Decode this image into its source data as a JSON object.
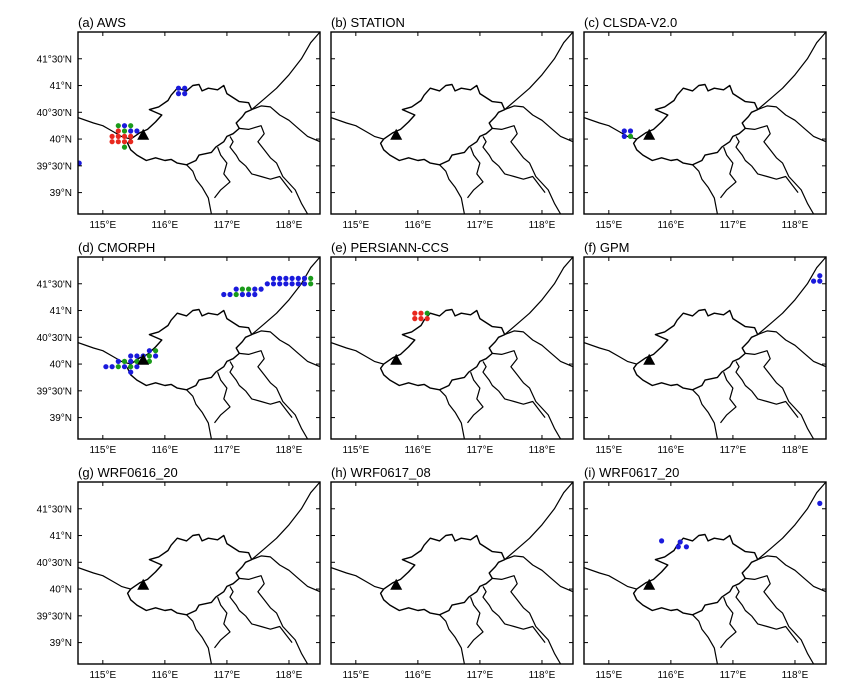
{
  "lon_ticks": [
    "115°E",
    "116°E",
    "117°E",
    "118°E"
  ],
  "lat_ticks": [
    "41°30'N",
    "41°N",
    "40°30'N",
    "40°N",
    "39°30'N",
    "39°N"
  ],
  "lon_values": [
    115,
    116,
    117,
    118
  ],
  "lat_values": [
    41.5,
    41.0,
    40.5,
    40.0,
    39.5,
    39.0
  ],
  "map_extent": {
    "lon": [
      114.6,
      118.5
    ],
    "lat": [
      38.6,
      42.0
    ]
  },
  "colors": {
    "blue": "#1a1adc",
    "green": "#1a9a1a",
    "red": "#e8281e",
    "boundary": "#000000",
    "station_marker": "#000000"
  },
  "station_marker": {
    "lon": 115.65,
    "lat": 40.08,
    "icon": "triangle-icon"
  },
  "panels": [
    {
      "title": "(a) AWS",
      "points": [
        {
          "lon": 116.22,
          "lat": 40.95,
          "c": "blue"
        },
        {
          "lon": 116.32,
          "lat": 40.95,
          "c": "blue"
        },
        {
          "lon": 116.22,
          "lat": 40.85,
          "c": "blue"
        },
        {
          "lon": 116.32,
          "lat": 40.85,
          "c": "blue"
        },
        {
          "lon": 115.25,
          "lat": 40.25,
          "c": "green"
        },
        {
          "lon": 115.35,
          "lat": 40.25,
          "c": "blue"
        },
        {
          "lon": 115.45,
          "lat": 40.25,
          "c": "green"
        },
        {
          "lon": 115.25,
          "lat": 40.15,
          "c": "red"
        },
        {
          "lon": 115.35,
          "lat": 40.15,
          "c": "green"
        },
        {
          "lon": 115.45,
          "lat": 40.15,
          "c": "blue"
        },
        {
          "lon": 115.55,
          "lat": 40.15,
          "c": "blue"
        },
        {
          "lon": 115.15,
          "lat": 40.05,
          "c": "red"
        },
        {
          "lon": 115.25,
          "lat": 40.05,
          "c": "red"
        },
        {
          "lon": 115.35,
          "lat": 40.05,
          "c": "red"
        },
        {
          "lon": 115.45,
          "lat": 40.05,
          "c": "red"
        },
        {
          "lon": 115.15,
          "lat": 39.95,
          "c": "red"
        },
        {
          "lon": 115.25,
          "lat": 39.95,
          "c": "red"
        },
        {
          "lon": 115.35,
          "lat": 39.95,
          "c": "red"
        },
        {
          "lon": 115.45,
          "lat": 39.95,
          "c": "red"
        },
        {
          "lon": 115.35,
          "lat": 39.85,
          "c": "green"
        },
        {
          "lon": 114.62,
          "lat": 39.55,
          "c": "blue"
        }
      ]
    },
    {
      "title": "(b) STATION",
      "points": []
    },
    {
      "title": "(c) CLSDA-V2.0",
      "points": [
        {
          "lon": 115.25,
          "lat": 40.15,
          "c": "blue"
        },
        {
          "lon": 115.35,
          "lat": 40.15,
          "c": "blue"
        },
        {
          "lon": 115.25,
          "lat": 40.05,
          "c": "blue"
        },
        {
          "lon": 115.35,
          "lat": 40.05,
          "c": "green"
        }
      ]
    },
    {
      "title": "(d) CMORPH",
      "points": [
        {
          "lon": 117.75,
          "lat": 41.6,
          "c": "blue"
        },
        {
          "lon": 117.85,
          "lat": 41.6,
          "c": "blue"
        },
        {
          "lon": 117.95,
          "lat": 41.6,
          "c": "blue"
        },
        {
          "lon": 118.05,
          "lat": 41.6,
          "c": "blue"
        },
        {
          "lon": 118.15,
          "lat": 41.6,
          "c": "blue"
        },
        {
          "lon": 118.25,
          "lat": 41.6,
          "c": "blue"
        },
        {
          "lon": 118.35,
          "lat": 41.6,
          "c": "green"
        },
        {
          "lon": 117.65,
          "lat": 41.5,
          "c": "blue"
        },
        {
          "lon": 117.75,
          "lat": 41.5,
          "c": "blue"
        },
        {
          "lon": 117.85,
          "lat": 41.5,
          "c": "blue"
        },
        {
          "lon": 117.95,
          "lat": 41.5,
          "c": "blue"
        },
        {
          "lon": 118.05,
          "lat": 41.5,
          "c": "blue"
        },
        {
          "lon": 118.15,
          "lat": 41.5,
          "c": "blue"
        },
        {
          "lon": 118.25,
          "lat": 41.5,
          "c": "blue"
        },
        {
          "lon": 118.35,
          "lat": 41.5,
          "c": "green"
        },
        {
          "lon": 117.15,
          "lat": 41.4,
          "c": "blue"
        },
        {
          "lon": 117.25,
          "lat": 41.4,
          "c": "green"
        },
        {
          "lon": 117.35,
          "lat": 41.4,
          "c": "green"
        },
        {
          "lon": 117.45,
          "lat": 41.4,
          "c": "blue"
        },
        {
          "lon": 117.55,
          "lat": 41.4,
          "c": "blue"
        },
        {
          "lon": 116.95,
          "lat": 41.3,
          "c": "blue"
        },
        {
          "lon": 117.05,
          "lat": 41.3,
          "c": "blue"
        },
        {
          "lon": 117.15,
          "lat": 41.3,
          "c": "green"
        },
        {
          "lon": 117.25,
          "lat": 41.3,
          "c": "blue"
        },
        {
          "lon": 117.35,
          "lat": 41.3,
          "c": "blue"
        },
        {
          "lon": 117.45,
          "lat": 41.3,
          "c": "blue"
        },
        {
          "lon": 115.75,
          "lat": 40.25,
          "c": "blue"
        },
        {
          "lon": 115.85,
          "lat": 40.25,
          "c": "green"
        },
        {
          "lon": 115.45,
          "lat": 40.15,
          "c": "blue"
        },
        {
          "lon": 115.55,
          "lat": 40.15,
          "c": "blue"
        },
        {
          "lon": 115.65,
          "lat": 40.15,
          "c": "blue"
        },
        {
          "lon": 115.75,
          "lat": 40.15,
          "c": "green"
        },
        {
          "lon": 115.85,
          "lat": 40.15,
          "c": "blue"
        },
        {
          "lon": 115.25,
          "lat": 40.05,
          "c": "blue"
        },
        {
          "lon": 115.35,
          "lat": 40.05,
          "c": "green"
        },
        {
          "lon": 115.45,
          "lat": 40.05,
          "c": "blue"
        },
        {
          "lon": 115.55,
          "lat": 40.05,
          "c": "green"
        },
        {
          "lon": 115.65,
          "lat": 40.05,
          "c": "green"
        },
        {
          "lon": 115.75,
          "lat": 40.05,
          "c": "green"
        },
        {
          "lon": 115.05,
          "lat": 39.95,
          "c": "blue"
        },
        {
          "lon": 115.15,
          "lat": 39.95,
          "c": "blue"
        },
        {
          "lon": 115.25,
          "lat": 39.95,
          "c": "green"
        },
        {
          "lon": 115.35,
          "lat": 39.95,
          "c": "blue"
        },
        {
          "lon": 115.45,
          "lat": 39.95,
          "c": "green"
        },
        {
          "lon": 115.55,
          "lat": 39.95,
          "c": "blue"
        },
        {
          "lon": 115.45,
          "lat": 39.85,
          "c": "blue"
        }
      ]
    },
    {
      "title": "(e) PERSIANN-CCS",
      "points": [
        {
          "lon": 115.95,
          "lat": 40.95,
          "c": "red"
        },
        {
          "lon": 116.05,
          "lat": 40.95,
          "c": "red"
        },
        {
          "lon": 116.15,
          "lat": 40.95,
          "c": "green"
        },
        {
          "lon": 115.95,
          "lat": 40.85,
          "c": "red"
        },
        {
          "lon": 116.05,
          "lat": 40.85,
          "c": "red"
        },
        {
          "lon": 116.15,
          "lat": 40.85,
          "c": "red"
        }
      ]
    },
    {
      "title": "(f) GPM",
      "points": [
        {
          "lon": 118.4,
          "lat": 41.65,
          "c": "blue"
        },
        {
          "lon": 118.3,
          "lat": 41.55,
          "c": "blue"
        },
        {
          "lon": 118.4,
          "lat": 41.55,
          "c": "blue"
        }
      ]
    },
    {
      "title": "(g) WRF0616_20",
      "points": []
    },
    {
      "title": "(h) WRF0617_08",
      "points": []
    },
    {
      "title": "(i) WRF0617_20",
      "points": [
        {
          "lon": 118.4,
          "lat": 41.6,
          "c": "blue"
        },
        {
          "lon": 115.85,
          "lat": 40.9,
          "c": "blue"
        },
        {
          "lon": 116.15,
          "lat": 40.88,
          "c": "blue"
        },
        {
          "lon": 116.12,
          "lat": 40.79,
          "c": "blue"
        },
        {
          "lon": 116.25,
          "lat": 40.79,
          "c": "blue"
        }
      ]
    }
  ]
}
